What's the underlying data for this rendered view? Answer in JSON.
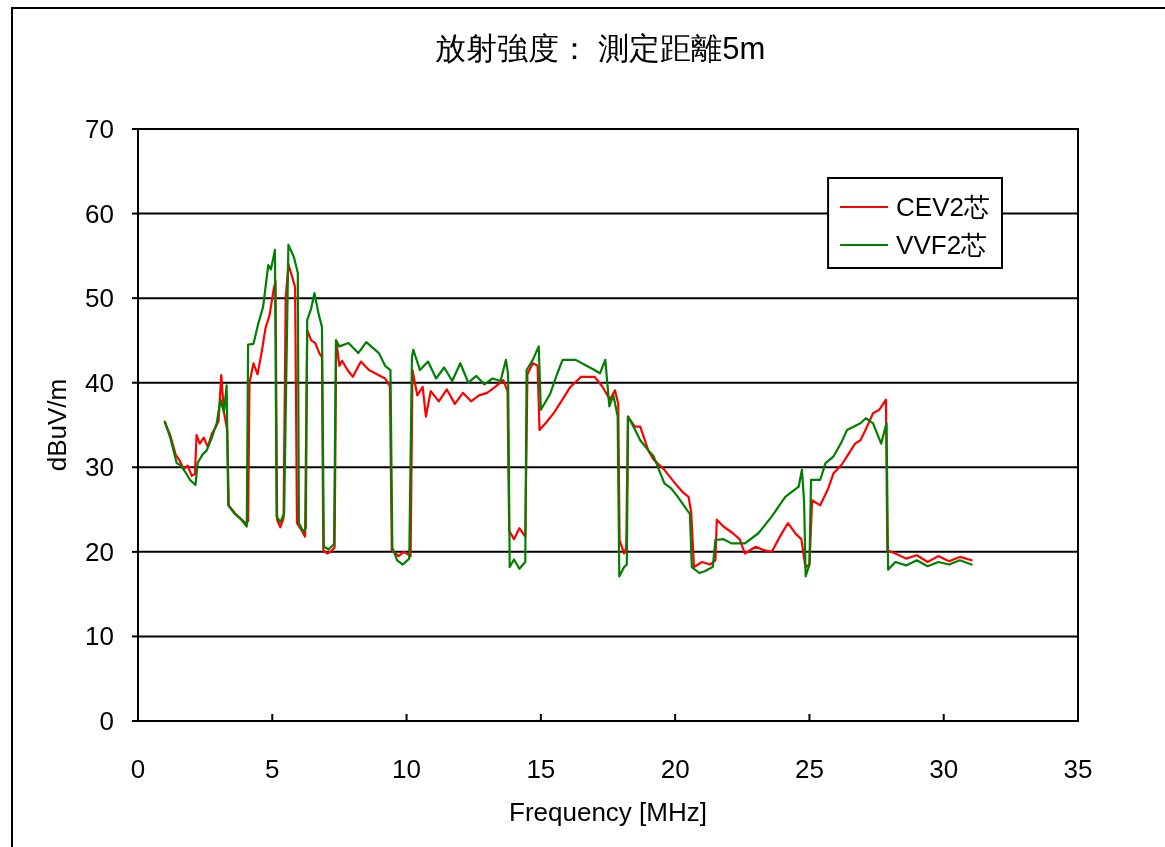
{
  "chart_data": {
    "type": "line",
    "title": "放射強度： 測定距離5m",
    "xlabel": "Frequency [MHz]",
    "ylabel": "dBuV/m",
    "xlim": [
      0,
      35
    ],
    "ylim": [
      0,
      70
    ],
    "xticks": [
      0,
      5,
      10,
      15,
      20,
      25,
      30,
      35
    ],
    "yticks": [
      0,
      10,
      20,
      30,
      40,
      50,
      60,
      70
    ],
    "grid": "y",
    "legend": "top right",
    "series": [
      {
        "name": "CEV2芯",
        "color": "#ff0000",
        "x": [
          1.0,
          1.2,
          1.4,
          1.55,
          1.7,
          1.85,
          2.0,
          2.12,
          2.18,
          2.3,
          2.45,
          2.6,
          2.75,
          2.9,
          3.0,
          3.1,
          3.2,
          3.32,
          3.38,
          3.6,
          3.8,
          4.0,
          4.1,
          4.15,
          4.3,
          4.45,
          4.6,
          4.75,
          4.9,
          5.05,
          5.12,
          5.18,
          5.3,
          5.42,
          5.5,
          5.6,
          5.75,
          5.85,
          5.92,
          6.1,
          6.22,
          6.3,
          6.45,
          6.6,
          6.75,
          6.85,
          6.9,
          7.05,
          7.2,
          7.32,
          7.38,
          7.5,
          7.6,
          7.8,
          8.0,
          8.3,
          8.6,
          8.9,
          9.2,
          9.38,
          9.45,
          9.7,
          9.9,
          10.15,
          10.22,
          10.4,
          10.6,
          10.72,
          10.9,
          11.2,
          11.5,
          11.8,
          12.1,
          12.4,
          12.7,
          13.0,
          13.3,
          13.6,
          13.76,
          13.82,
          14.0,
          14.2,
          14.42,
          14.5,
          14.7,
          14.88,
          14.95,
          15.2,
          15.5,
          15.8,
          16.1,
          16.5,
          17.0,
          17.3,
          17.57,
          17.76,
          17.88,
          17.93,
          18.1,
          18.18,
          18.24,
          18.5,
          18.7,
          19.0,
          19.2,
          19.6,
          20.0,
          20.3,
          20.5,
          20.6,
          20.7,
          21.0,
          21.3,
          21.5,
          21.55,
          21.8,
          22.15,
          22.4,
          22.6,
          23.0,
          23.3,
          23.6,
          23.9,
          24.2,
          24.5,
          24.7,
          24.85,
          25.0,
          25.1,
          25.4,
          25.7,
          25.9,
          26.2,
          26.4,
          26.7,
          26.9,
          27.1,
          27.37,
          27.6,
          27.85,
          27.9,
          28.2,
          28.6,
          29.0,
          29.4,
          29.8,
          30.2,
          30.6,
          31.04
        ],
        "values": [
          35.3,
          33.8,
          31.5,
          30.8,
          29.8,
          30.2,
          29.0,
          29.2,
          33.8,
          32.8,
          33.5,
          32.4,
          34.0,
          34.8,
          35.5,
          40.9,
          36.5,
          34.5,
          25.5,
          24.6,
          24.0,
          23.4,
          23.6,
          40.0,
          42.3,
          41.0,
          43.5,
          46.5,
          48.0,
          51.0,
          52.0,
          23.8,
          22.9,
          24.0,
          50.0,
          54.0,
          52.4,
          51.3,
          23.4,
          22.5,
          21.8,
          46.2,
          45.0,
          44.7,
          43.5,
          43.0,
          20.2,
          19.8,
          20.1,
          20.5,
          45.0,
          42.0,
          42.6,
          41.5,
          40.7,
          42.5,
          41.5,
          41.0,
          40.5,
          39.6,
          20.2,
          19.5,
          20.0,
          19.5,
          41.5,
          38.5,
          39.5,
          36.0,
          39.0,
          37.8,
          39.2,
          37.5,
          38.8,
          37.8,
          38.5,
          38.8,
          39.5,
          40.3,
          39.0,
          22.5,
          21.5,
          22.8,
          21.8,
          41.0,
          42.3,
          42.0,
          34.4,
          35.3,
          36.5,
          38.0,
          39.5,
          40.7,
          40.7,
          39.5,
          38.0,
          39.1,
          37.5,
          21.4,
          19.8,
          20.5,
          36.0,
          34.8,
          34.8,
          32.0,
          30.9,
          29.7,
          28.1,
          27.0,
          26.5,
          24.6,
          18.2,
          18.8,
          18.5,
          19.0,
          23.8,
          23.0,
          22.2,
          21.5,
          19.8,
          20.6,
          20.2,
          20.0,
          21.8,
          23.4,
          22.1,
          21.5,
          18.2,
          18.5,
          26.1,
          25.5,
          27.5,
          29.3,
          30.3,
          31.3,
          32.8,
          33.2,
          34.5,
          36.4,
          36.8,
          38.0,
          20.2,
          19.8,
          19.2,
          19.6,
          18.8,
          19.5,
          18.9,
          19.4,
          19.0
        ]
      },
      {
        "name": "VVF2芯",
        "color": "#008000",
        "x": [
          1.0,
          1.2,
          1.44,
          1.6,
          1.75,
          1.94,
          2.14,
          2.22,
          2.4,
          2.56,
          2.75,
          2.93,
          3.07,
          3.2,
          3.3,
          3.36,
          3.6,
          3.85,
          4.05,
          4.1,
          4.3,
          4.48,
          4.66,
          4.85,
          4.95,
          5.1,
          5.16,
          5.3,
          5.44,
          5.6,
          5.8,
          5.95,
          5.99,
          6.15,
          6.25,
          6.3,
          6.45,
          6.57,
          6.72,
          6.85,
          6.92,
          7.1,
          7.3,
          7.37,
          7.5,
          7.84,
          8.2,
          8.5,
          8.97,
          9.2,
          9.4,
          9.47,
          9.65,
          9.86,
          10.1,
          10.2,
          10.25,
          10.5,
          10.8,
          11.1,
          11.4,
          11.7,
          12.0,
          12.3,
          12.6,
          12.9,
          13.2,
          13.5,
          13.7,
          13.78,
          13.84,
          14.0,
          14.2,
          14.42,
          14.47,
          14.7,
          14.92,
          15.0,
          15.35,
          15.6,
          15.81,
          16.3,
          16.7,
          17.0,
          17.2,
          17.4,
          17.55,
          17.7,
          17.86,
          17.92,
          18.1,
          18.2,
          18.25,
          18.5,
          18.7,
          19.0,
          19.2,
          19.6,
          19.85,
          20.1,
          20.43,
          20.55,
          20.62,
          20.9,
          21.1,
          21.4,
          21.5,
          21.8,
          22.1,
          22.6,
          23.1,
          23.6,
          24.1,
          24.6,
          24.72,
          24.8,
          24.86,
          25.0,
          25.06,
          25.4,
          25.6,
          25.9,
          26.2,
          26.4,
          26.9,
          27.1,
          27.37,
          27.67,
          27.87,
          27.93,
          28.2,
          28.6,
          29.0,
          29.4,
          29.8,
          30.2,
          30.6,
          31.04
        ],
        "values": [
          35.4,
          33.5,
          30.5,
          30.2,
          29.5,
          28.5,
          27.9,
          30.5,
          31.5,
          32.0,
          33.5,
          35.2,
          38.0,
          36.5,
          39.7,
          25.5,
          24.5,
          23.8,
          23.0,
          44.5,
          44.6,
          47.0,
          49.0,
          53.9,
          53.4,
          55.7,
          24.2,
          23.5,
          24.5,
          56.3,
          54.9,
          53.0,
          23.4,
          22.4,
          22.8,
          47.4,
          48.8,
          50.6,
          48.2,
          46.6,
          20.6,
          20.3,
          20.9,
          45.0,
          44.3,
          44.7,
          43.5,
          44.8,
          43.5,
          42.0,
          41.5,
          20.5,
          19.0,
          18.5,
          19.2,
          43.0,
          43.9,
          41.5,
          42.5,
          40.5,
          41.8,
          40.2,
          42.3,
          40.0,
          40.8,
          39.8,
          40.5,
          40.2,
          42.7,
          41.0,
          18.2,
          19.1,
          18.0,
          18.8,
          41.5,
          42.7,
          44.3,
          36.8,
          38.7,
          41.0,
          42.7,
          42.7,
          42.0,
          41.5,
          41.1,
          42.7,
          37.2,
          38.5,
          36.0,
          17.1,
          18.2,
          18.5,
          36.0,
          34.5,
          33.2,
          32.0,
          31.3,
          28.1,
          27.5,
          26.5,
          25.0,
          24.5,
          18.2,
          17.5,
          17.7,
          18.2,
          21.4,
          21.5,
          21.0,
          21.0,
          22.2,
          24.2,
          26.5,
          27.7,
          29.7,
          26.0,
          17.1,
          18.5,
          28.5,
          28.5,
          30.5,
          31.3,
          33.0,
          34.4,
          35.2,
          35.8,
          35.2,
          32.8,
          35.2,
          17.9,
          18.8,
          18.4,
          19.0,
          18.3,
          18.8,
          18.5,
          19.0,
          18.5
        ]
      }
    ]
  }
}
